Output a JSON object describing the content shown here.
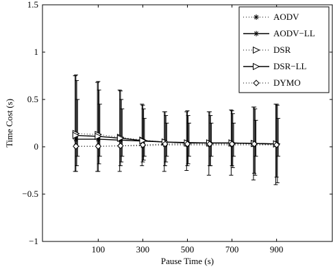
{
  "chart_data": {
    "type": "line",
    "title": "",
    "xlabel": "Pause Time (s)",
    "ylabel": "Time Cost (s)",
    "xlim": [
      -150,
      1150
    ],
    "ylim": [
      -1,
      1.5
    ],
    "xticks": [
      100,
      300,
      500,
      700,
      900
    ],
    "xtick_labels": [
      "100",
      "300",
      "500",
      "700",
      "900"
    ],
    "yticks": [
      -1,
      -0.5,
      0,
      0.5,
      1,
      1.5
    ],
    "ytick_labels": [
      "−1",
      "−0.5",
      "0",
      "0.5",
      "1",
      "1.5"
    ],
    "grid": false,
    "legend_position": "top-right",
    "x": [
      0,
      100,
      200,
      300,
      400,
      500,
      600,
      700,
      800,
      900
    ],
    "series": [
      {
        "name": "AODV",
        "marker": "asterisk",
        "line": "dotted",
        "values": [
          0.005,
          0.005,
          0.01,
          0.01,
          0.02,
          0.02,
          0.02,
          0.02,
          0.02,
          0.02
        ],
        "err_low": [
          0.0,
          0.0,
          0.0,
          0.0,
          0.0,
          0.0,
          0.0,
          0.0,
          0.0,
          0.0
        ],
        "err_high": [
          0.0,
          0.0,
          0.0,
          0.0,
          0.0,
          0.0,
          0.0,
          0.0,
          0.0,
          0.0
        ]
      },
      {
        "name": "AODV−LL",
        "marker": "asterisk",
        "line": "solid",
        "values": [
          0.08,
          0.08,
          0.07,
          0.06,
          0.05,
          0.045,
          0.04,
          0.04,
          0.035,
          0.03
        ],
        "err_low": [
          -0.26,
          -0.26,
          -0.26,
          -0.2,
          -0.26,
          -0.25,
          -0.3,
          -0.3,
          -0.35,
          -0.4
        ],
        "err_high": [
          0.75,
          0.68,
          0.6,
          0.45,
          0.37,
          0.37,
          0.37,
          0.39,
          0.42,
          0.45
        ]
      },
      {
        "name": "DSR",
        "marker": "triangle-right",
        "line": "dotted",
        "values": [
          0.14,
          0.13,
          0.1,
          0.07,
          0.05,
          0.04,
          0.04,
          0.04,
          0.035,
          0.03
        ],
        "err_low": [
          -0.26,
          -0.26,
          -0.2,
          -0.16,
          -0.2,
          -0.2,
          -0.2,
          -0.2,
          -0.28,
          -0.32
        ],
        "err_high": [
          0.76,
          0.69,
          0.59,
          0.44,
          0.37,
          0.38,
          0.37,
          0.38,
          0.42,
          0.45
        ]
      },
      {
        "name": "DSR−LL",
        "marker": "triangle-right",
        "line": "solid",
        "values": [
          0.12,
          0.11,
          0.09,
          0.065,
          0.05,
          0.04,
          0.04,
          0.04,
          0.035,
          0.03
        ],
        "err_low": [
          -0.2,
          -0.18,
          -0.16,
          -0.14,
          -0.16,
          -0.18,
          -0.2,
          -0.22,
          -0.3,
          -0.38
        ],
        "err_high": [
          0.7,
          0.6,
          0.5,
          0.4,
          0.33,
          0.33,
          0.33,
          0.35,
          0.4,
          0.44
        ]
      },
      {
        "name": "DYMO",
        "marker": "diamond",
        "line": "dotted",
        "values": [
          0.005,
          0.005,
          0.01,
          0.02,
          0.03,
          0.03,
          0.03,
          0.03,
          0.03,
          0.02
        ],
        "err_low": [
          -0.1,
          -0.1,
          -0.1,
          -0.1,
          -0.1,
          -0.1,
          -0.1,
          -0.1,
          -0.1,
          -0.1
        ],
        "err_high": [
          0.5,
          0.45,
          0.4,
          0.3,
          0.25,
          0.25,
          0.25,
          0.25,
          0.28,
          0.3
        ]
      }
    ]
  }
}
